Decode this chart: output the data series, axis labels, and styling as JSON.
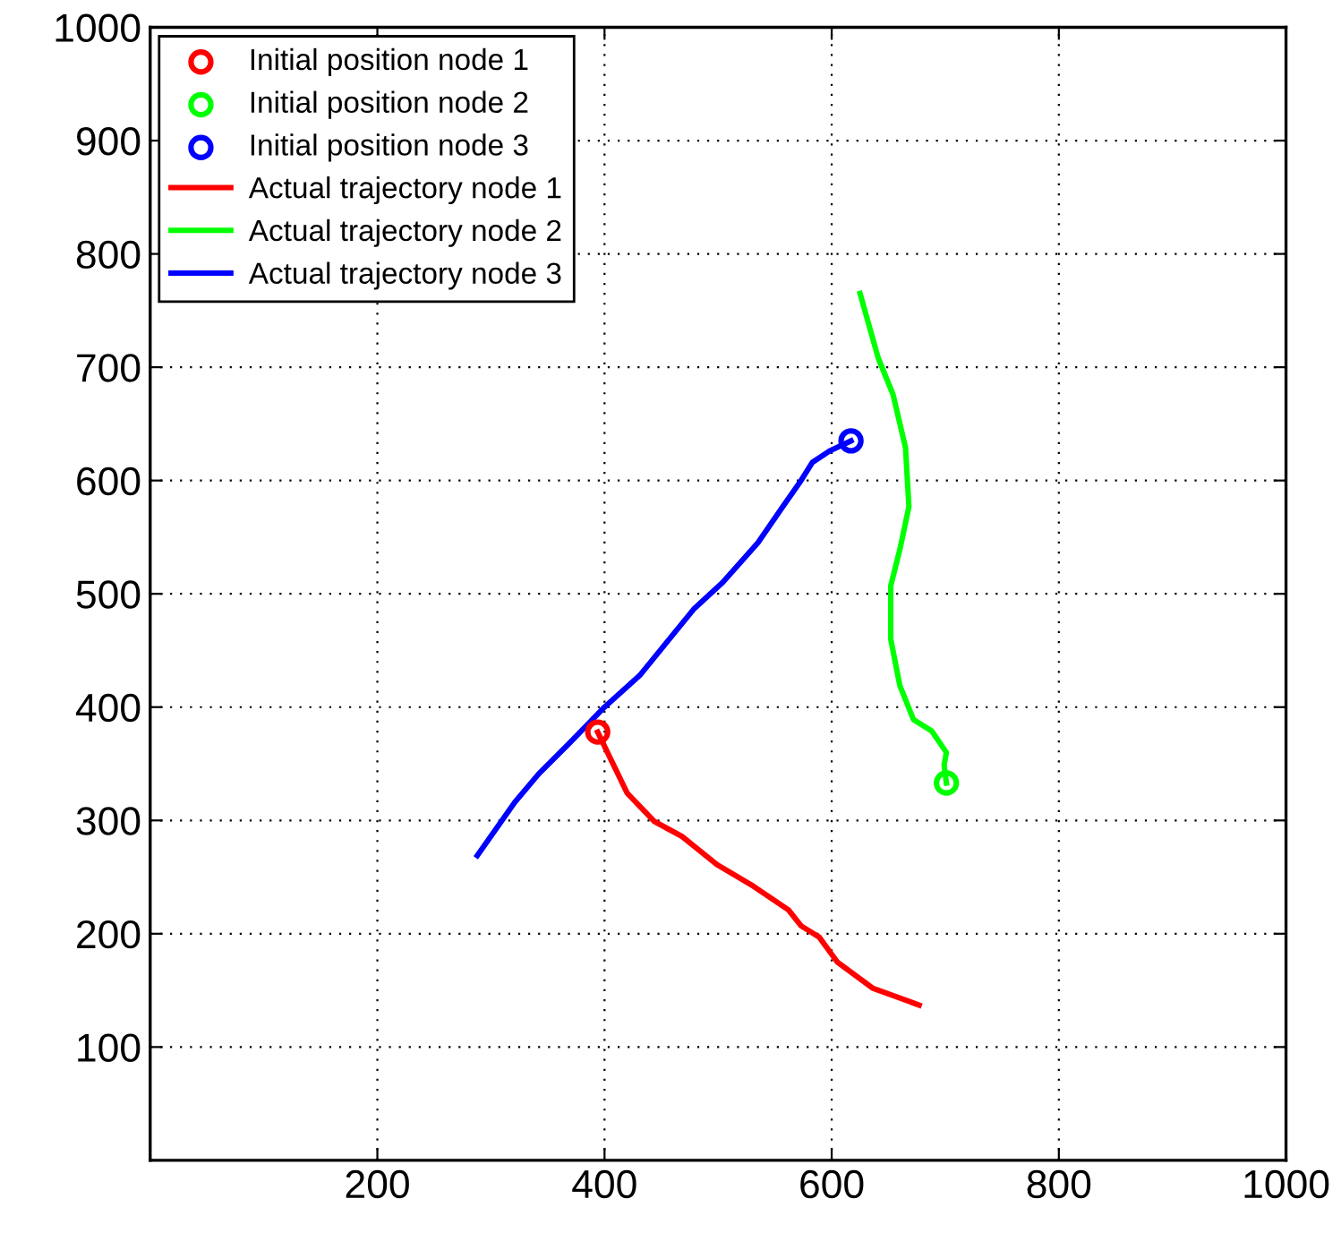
{
  "chart_data": {
    "xlim": [
      0,
      1000
    ],
    "ylim": [
      0,
      1000
    ],
    "xticks": [
      200,
      400,
      600,
      800,
      1000
    ],
    "yticks": [
      100,
      200,
      300,
      400,
      500,
      600,
      700,
      800,
      900,
      1000
    ],
    "grid": true,
    "legend": "top left",
    "type": "line",
    "line_style": "solid",
    "series": [
      {
        "name": "Initial position node 1",
        "type": "scatter",
        "marker": "circle",
        "color": "#ff0000",
        "x": [
          394
        ],
        "values": [
          378
        ]
      },
      {
        "name": "Initial position node 2",
        "type": "scatter",
        "marker": "circle",
        "color": "#00ff00",
        "x": [
          701
        ],
        "values": [
          333
        ]
      },
      {
        "name": "Initial position node 3",
        "type": "scatter",
        "marker": "circle",
        "color": "#0000ff",
        "x": [
          617
        ],
        "values": [
          635
        ]
      },
      {
        "name": "Actual trajectory node 1",
        "color": "#ff0000",
        "x": [
          394,
          405,
          420,
          444,
          468,
          499,
          531,
          562,
          573,
          589,
          605,
          636,
          677
        ],
        "values": [
          378,
          355,
          324,
          299,
          286,
          261,
          242,
          221,
          207,
          197,
          175,
          152,
          137
        ]
      },
      {
        "name": "Actual trajectory node 2",
        "color": "#00ff00",
        "x": [
          625,
          641,
          654,
          665,
          668,
          660,
          652,
          652,
          660,
          672,
          688,
          701,
          699,
          701
        ],
        "values": [
          765,
          708,
          676,
          629,
          577,
          539,
          507,
          460,
          419,
          389,
          379,
          360,
          349,
          333
        ]
      },
      {
        "name": "Actual trajectory node 3",
        "color": "#0000ff",
        "x": [
          617,
          598,
          583,
          573,
          557,
          535,
          504,
          479,
          457,
          431,
          400,
          369,
          342,
          321,
          288
        ],
        "values": [
          635,
          626,
          616,
          600,
          577,
          545,
          510,
          487,
          460,
          428,
          400,
          368,
          341,
          316,
          269
        ]
      }
    ]
  }
}
